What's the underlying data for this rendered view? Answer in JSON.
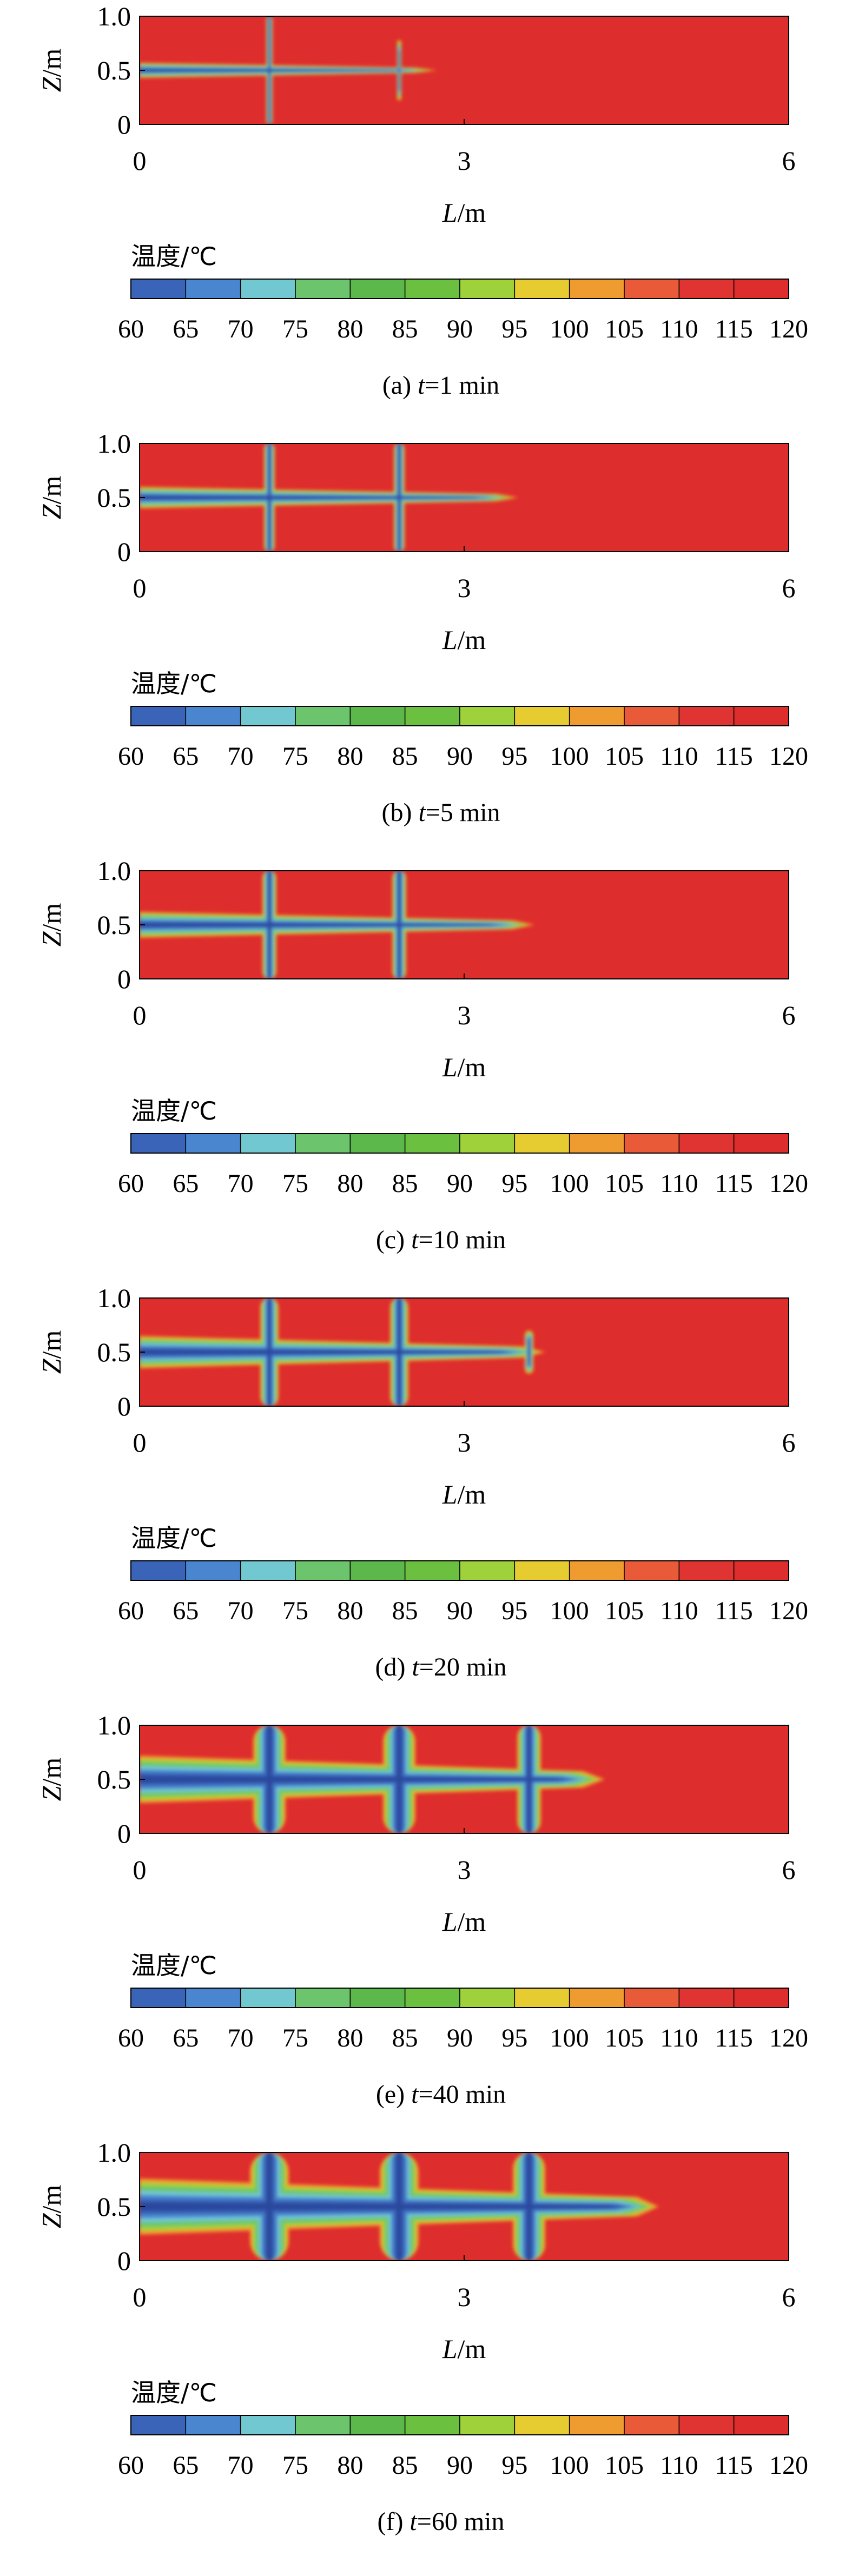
{
  "chart_data": [
    {
      "type": "heatmap",
      "panel": "(a)",
      "caption_prefix": "(a) ",
      "caption_var": "t",
      "caption_value": "=1 min",
      "time_min": 1,
      "xlabel_var": "L",
      "xlabel_unit": "/m",
      "ylabel_var": "Z",
      "ylabel_unit": "/m",
      "xlim": [
        0,
        6
      ],
      "ylim": [
        0,
        1
      ],
      "x_ticks": [
        "0",
        "3",
        "6"
      ],
      "y_ticks": [
        "0",
        "0.5",
        "1.0"
      ],
      "colorbar_title": "温度/℃",
      "colorbar_ticks": [
        "60",
        "65",
        "70",
        "75",
        "80",
        "85",
        "90",
        "95",
        "100",
        "105",
        "110",
        "115",
        "120"
      ],
      "background_temp": 120,
      "horizontal_tube": {
        "z": 0.5,
        "x_start": 0,
        "x_end": 2.75,
        "cold_width": 0.07
      },
      "vertical_tubes": [
        {
          "x": 1.2,
          "z_range": [
            0,
            1
          ],
          "cold_width": 0.06
        },
        {
          "x": 2.4,
          "z_range": [
            0.22,
            0.78
          ],
          "cold_width": 0.04
        }
      ]
    },
    {
      "type": "heatmap",
      "panel": "(b)",
      "caption_prefix": "(b) ",
      "caption_var": "t",
      "caption_value": "=5 min",
      "time_min": 5,
      "xlabel_var": "L",
      "xlabel_unit": "/m",
      "ylabel_var": "Z",
      "ylabel_unit": "/m",
      "xlim": [
        0,
        6
      ],
      "ylim": [
        0,
        1
      ],
      "x_ticks": [
        "0",
        "3",
        "6"
      ],
      "y_ticks": [
        "0",
        "0.5",
        "1.0"
      ],
      "colorbar_title": "温度/℃",
      "colorbar_ticks": [
        "60",
        "65",
        "70",
        "75",
        "80",
        "85",
        "90",
        "95",
        "100",
        "105",
        "110",
        "115",
        "120"
      ],
      "background_temp": 120,
      "horizontal_tube": {
        "z": 0.5,
        "x_start": 0,
        "x_end": 3.5,
        "cold_width": 0.1
      },
      "vertical_tubes": [
        {
          "x": 1.2,
          "z_range": [
            0,
            1
          ],
          "cold_width": 0.1
        },
        {
          "x": 2.4,
          "z_range": [
            0,
            1
          ],
          "cold_width": 0.1
        }
      ]
    },
    {
      "type": "heatmap",
      "panel": "(c)",
      "caption_prefix": "(c) ",
      "caption_var": "t",
      "caption_value": "=10 min",
      "time_min": 10,
      "xlabel_var": "L",
      "xlabel_unit": "/m",
      "ylabel_var": "Z",
      "ylabel_unit": "/m",
      "xlim": [
        0,
        6
      ],
      "ylim": [
        0,
        1
      ],
      "x_ticks": [
        "0",
        "3",
        "6"
      ],
      "y_ticks": [
        "0",
        "0.5",
        "1.0"
      ],
      "colorbar_title": "温度/℃",
      "colorbar_ticks": [
        "60",
        "65",
        "70",
        "75",
        "80",
        "85",
        "90",
        "95",
        "100",
        "105",
        "110",
        "115",
        "120"
      ],
      "background_temp": 120,
      "horizontal_tube": {
        "z": 0.5,
        "x_start": 0,
        "x_end": 3.65,
        "cold_width": 0.12
      },
      "vertical_tubes": [
        {
          "x": 1.2,
          "z_range": [
            0,
            1
          ],
          "cold_width": 0.13
        },
        {
          "x": 2.4,
          "z_range": [
            0,
            1
          ],
          "cold_width": 0.13
        }
      ]
    },
    {
      "type": "heatmap",
      "panel": "(d)",
      "caption_prefix": "(d) ",
      "caption_var": "t",
      "caption_value": "=20 min",
      "time_min": 20,
      "xlabel_var": "L",
      "xlabel_unit": "/m",
      "ylabel_var": "Z",
      "ylabel_unit": "/m",
      "xlim": [
        0,
        6
      ],
      "ylim": [
        0,
        1
      ],
      "x_ticks": [
        "0",
        "3",
        "6"
      ],
      "y_ticks": [
        "0",
        "0.5",
        "1.0"
      ],
      "colorbar_title": "温度/℃",
      "colorbar_ticks": [
        "60",
        "65",
        "70",
        "75",
        "80",
        "85",
        "90",
        "95",
        "100",
        "105",
        "110",
        "115",
        "120"
      ],
      "background_temp": 120,
      "horizontal_tube": {
        "z": 0.5,
        "x_start": 0,
        "x_end": 3.75,
        "cold_width": 0.15
      },
      "vertical_tubes": [
        {
          "x": 1.2,
          "z_range": [
            0,
            1
          ],
          "cold_width": 0.17
        },
        {
          "x": 2.4,
          "z_range": [
            0,
            1
          ],
          "cold_width": 0.17
        },
        {
          "x": 3.6,
          "z_range": [
            0.3,
            0.7
          ],
          "cold_width": 0.08
        }
      ]
    },
    {
      "type": "heatmap",
      "panel": "(e)",
      "caption_prefix": "(e) ",
      "caption_var": "t",
      "caption_value": "=40 min",
      "time_min": 40,
      "xlabel_var": "L",
      "xlabel_unit": "/m",
      "ylabel_var": "Z",
      "ylabel_unit": "/m",
      "xlim": [
        0,
        6
      ],
      "ylim": [
        0,
        1
      ],
      "x_ticks": [
        "0",
        "3",
        "6"
      ],
      "y_ticks": [
        "0",
        "0.5",
        "1.0"
      ],
      "colorbar_title": "温度/℃",
      "colorbar_ticks": [
        "60",
        "65",
        "70",
        "75",
        "80",
        "85",
        "90",
        "95",
        "100",
        "105",
        "110",
        "115",
        "120"
      ],
      "background_temp": 120,
      "horizontal_tube": {
        "z": 0.5,
        "x_start": 0,
        "x_end": 4.3,
        "cold_width": 0.22
      },
      "vertical_tubes": [
        {
          "x": 1.2,
          "z_range": [
            0,
            1
          ],
          "cold_width": 0.3
        },
        {
          "x": 2.4,
          "z_range": [
            0,
            1
          ],
          "cold_width": 0.3
        },
        {
          "x": 3.6,
          "z_range": [
            0,
            1
          ],
          "cold_width": 0.22
        }
      ]
    },
    {
      "type": "heatmap",
      "panel": "(f)",
      "caption_prefix": "(f) ",
      "caption_var": "t",
      "caption_value": "=60 min",
      "time_min": 60,
      "xlabel_var": "L",
      "xlabel_unit": "/m",
      "ylabel_var": "Z",
      "ylabel_unit": "/m",
      "xlim": [
        0,
        6
      ],
      "ylim": [
        0,
        1
      ],
      "x_ticks": [
        "0",
        "3",
        "6"
      ],
      "y_ticks": [
        "0",
        "0.5",
        "1.0"
      ],
      "colorbar_title": "温度/℃",
      "colorbar_ticks": [
        "60",
        "65",
        "70",
        "75",
        "80",
        "85",
        "90",
        "95",
        "100",
        "105",
        "110",
        "115",
        "120"
      ],
      "background_temp": 120,
      "horizontal_tube": {
        "z": 0.5,
        "x_start": 0,
        "x_end": 4.8,
        "cold_width": 0.26
      },
      "vertical_tubes": [
        {
          "x": 1.2,
          "z_range": [
            0,
            1
          ],
          "cold_width": 0.36
        },
        {
          "x": 2.4,
          "z_range": [
            0,
            1
          ],
          "cold_width": 0.36
        },
        {
          "x": 3.6,
          "z_range": [
            0,
            1
          ],
          "cold_width": 0.3
        }
      ]
    }
  ],
  "colors": {
    "t60": "#2c4a9e",
    "t65": "#3a64b8",
    "t70": "#4a86d0",
    "t75": "#72c8d0",
    "t80": "#6cc56c",
    "t85": "#5cb84a",
    "t90": "#6cc040",
    "t95": "#9fd23a",
    "t100": "#e6cc30",
    "t105": "#ee9c30",
    "t110": "#e85a38",
    "t115": "#e03432",
    "t120": "#de2d2d"
  }
}
